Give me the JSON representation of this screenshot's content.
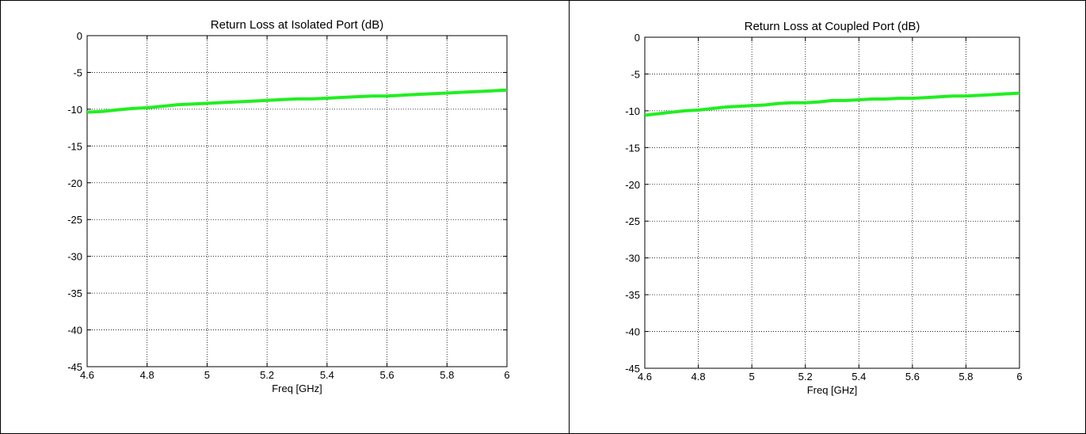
{
  "chart_data": [
    {
      "type": "line",
      "title": "Return Loss at Isolated Port (dB)",
      "xlabel": "Freq [GHz]",
      "ylabel": "",
      "xlim": [
        4.6,
        6.0
      ],
      "ylim": [
        -45,
        0
      ],
      "grid": true,
      "x_ticks": [
        "4.6",
        "4.8",
        "5",
        "5.2",
        "5.4",
        "5.6",
        "5.8",
        "6"
      ],
      "y_ticks": [
        "0",
        "-5",
        "-10",
        "-15",
        "-20",
        "-25",
        "-30",
        "-35",
        "-40",
        "-45"
      ],
      "line_color": "#22ee22",
      "series": [
        {
          "x": [
            4.6,
            4.65,
            4.7,
            4.75,
            4.8,
            4.85,
            4.9,
            4.95,
            5.0,
            5.05,
            5.1,
            5.15,
            5.2,
            5.25,
            5.3,
            5.35,
            5.4,
            5.45,
            5.5,
            5.55,
            5.6,
            5.65,
            5.7,
            5.75,
            5.8,
            5.85,
            5.9,
            5.95,
            6.0
          ],
          "values": [
            -10.4,
            -10.3,
            -10.1,
            -9.9,
            -9.8,
            -9.6,
            -9.4,
            -9.3,
            -9.2,
            -9.1,
            -9.0,
            -8.9,
            -8.8,
            -8.7,
            -8.6,
            -8.6,
            -8.5,
            -8.4,
            -8.3,
            -8.2,
            -8.2,
            -8.1,
            -8.0,
            -7.9,
            -7.8,
            -7.7,
            -7.6,
            -7.5,
            -7.4
          ]
        }
      ]
    },
    {
      "type": "line",
      "title": "Return Loss at Coupled Port (dB)",
      "xlabel": "Freq [GHz]",
      "ylabel": "",
      "xlim": [
        4.6,
        6.0
      ],
      "ylim": [
        -45,
        0
      ],
      "grid": true,
      "x_ticks": [
        "4.6",
        "4.8",
        "5",
        "5.2",
        "5.4",
        "5.6",
        "5.8",
        "6"
      ],
      "y_ticks": [
        "0",
        "-5",
        "-10",
        "-15",
        "-20",
        "-25",
        "-30",
        "-35",
        "-40",
        "-45"
      ],
      "line_color": "#22ee22",
      "series": [
        {
          "x": [
            4.6,
            4.65,
            4.7,
            4.75,
            4.8,
            4.85,
            4.9,
            4.95,
            5.0,
            5.05,
            5.1,
            5.15,
            5.2,
            5.25,
            5.3,
            5.35,
            5.4,
            5.45,
            5.5,
            5.55,
            5.6,
            5.65,
            5.7,
            5.75,
            5.8,
            5.85,
            5.9,
            5.95,
            6.0
          ],
          "values": [
            -10.6,
            -10.4,
            -10.2,
            -10.0,
            -9.9,
            -9.7,
            -9.5,
            -9.4,
            -9.3,
            -9.2,
            -9.0,
            -8.9,
            -8.9,
            -8.8,
            -8.6,
            -8.6,
            -8.5,
            -8.4,
            -8.4,
            -8.3,
            -8.3,
            -8.2,
            -8.1,
            -8.0,
            -8.0,
            -7.9,
            -7.8,
            -7.7,
            -7.6
          ]
        }
      ]
    }
  ]
}
